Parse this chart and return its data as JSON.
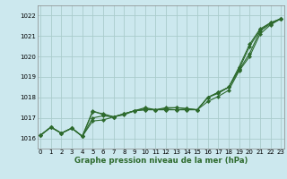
{
  "xlabel": "Graphe pression niveau de la mer (hPa)",
  "x_ticks": [
    0,
    1,
    2,
    3,
    4,
    5,
    6,
    7,
    8,
    9,
    10,
    11,
    12,
    13,
    14,
    15,
    16,
    17,
    18,
    19,
    20,
    21,
    22,
    23
  ],
  "ylim": [
    1015.5,
    1022.5
  ],
  "xlim": [
    -0.3,
    23.3
  ],
  "yticks": [
    1016,
    1017,
    1018,
    1019,
    1020,
    1021,
    1022
  ],
  "bg_color": "#cce8ee",
  "grid_color": "#aacccc",
  "line_color": "#2d6a2d",
  "series": [
    [
      1016.15,
      1016.55,
      1016.25,
      1016.5,
      1016.1,
      1016.85,
      1016.9,
      1017.05,
      1017.15,
      1017.35,
      1017.4,
      1017.4,
      1017.4,
      1017.4,
      1017.4,
      1017.4,
      1017.8,
      1018.05,
      1018.35,
      1019.3,
      1020.0,
      1021.1,
      1021.55,
      1021.85
    ],
    [
      1016.15,
      1016.55,
      1016.25,
      1016.5,
      1016.1,
      1017.0,
      1017.1,
      1017.05,
      1017.2,
      1017.35,
      1017.4,
      1017.4,
      1017.4,
      1017.4,
      1017.4,
      1017.4,
      1018.0,
      1018.2,
      1018.5,
      1019.35,
      1020.15,
      1021.25,
      1021.6,
      1021.85
    ],
    [
      1016.15,
      1016.55,
      1016.25,
      1016.5,
      1016.1,
      1017.3,
      1017.2,
      1017.05,
      1017.2,
      1017.35,
      1017.45,
      1017.4,
      1017.45,
      1017.5,
      1017.45,
      1017.4,
      1018.0,
      1018.25,
      1018.5,
      1019.4,
      1020.5,
      1021.3,
      1021.65,
      1021.85
    ],
    [
      1016.15,
      1016.55,
      1016.25,
      1016.5,
      1016.1,
      1017.35,
      1017.15,
      1017.05,
      1017.2,
      1017.35,
      1017.5,
      1017.4,
      1017.5,
      1017.5,
      1017.45,
      1017.4,
      1018.0,
      1018.25,
      1018.5,
      1019.5,
      1020.6,
      1021.35,
      1021.65,
      1021.85
    ]
  ],
  "marker": "D",
  "markersize": 2.2,
  "linewidth": 0.8,
  "tick_fontsize": 5.0,
  "label_fontsize": 6.2,
  "label_fontweight": "bold"
}
